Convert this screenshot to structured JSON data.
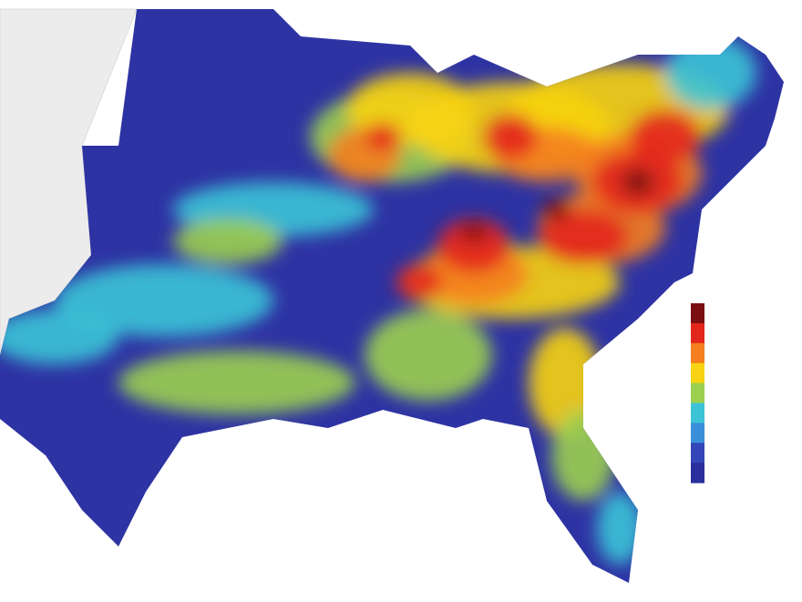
{
  "legend": {
    "colors": [
      "#7a0f12",
      "#e3261c",
      "#f57f1e",
      "#f7d312",
      "#9ccf4f",
      "#3cc4d6",
      "#3a8fd9",
      "#3446b8",
      "#2b2f9c"
    ]
  }
}
